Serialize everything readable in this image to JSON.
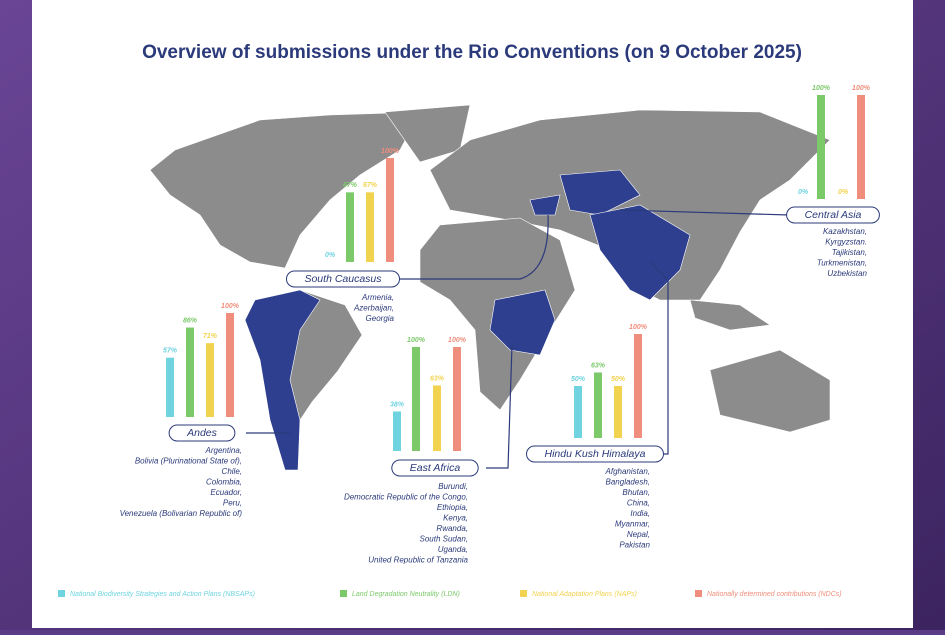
{
  "title": "Overview of submissions under the Rio Conventions (on 9 October 2025)",
  "legend": [
    {
      "name": "National Biodiversity Strategies and Action Plans (NBSAPs)",
      "color": "#6fd3e0"
    },
    {
      "name": "Land Degradation Neutrality (LDN)",
      "color": "#7cc96a"
    },
    {
      "name": "National Adaptation Plans (NAPs)",
      "color": "#f2d34f"
    },
    {
      "name": "Nationally determined contributions (NDCs)",
      "color": "#ef8e7c"
    }
  ],
  "regions": [
    {
      "name": "Andes",
      "values": [
        57,
        86,
        71,
        100
      ],
      "value_labels": [
        "57%",
        "86%",
        "71%",
        "100%"
      ],
      "countries": [
        "Argentina,",
        "Bolivia (Plurinational State of),",
        "Chile,",
        "Colombia,",
        "Ecuador,",
        "Peru,",
        "Venezuela (Bolivarian Republic of)"
      ]
    },
    {
      "name": "South Caucasus",
      "values": [
        0,
        67,
        67,
        100
      ],
      "value_labels": [
        "0%",
        "67%",
        "67%",
        "100%"
      ],
      "countries": [
        "Armenia,",
        "Azerbaijan,",
        "Georgia"
      ]
    },
    {
      "name": "Central Asia",
      "values": [
        0,
        100,
        0,
        100
      ],
      "value_labels": [
        "0%",
        "100%",
        "0%",
        "100%"
      ],
      "countries": [
        "Kazakhstan,",
        "Kyrgyzstan.",
        "Tajikistan,",
        "Turkmenistan,",
        "Uzbekistan"
      ]
    },
    {
      "name": "East Africa",
      "values": [
        38,
        100,
        63,
        100
      ],
      "value_labels": [
        "38%",
        "100%",
        "63%",
        "100%"
      ],
      "countries": [
        "Burundi,",
        "Democratic Republic of the Congo,",
        "Ethiopia,",
        "Kenya,",
        "Rwanda,",
        "South Sudan,",
        "Uganda,",
        "United Republic of Tanzania"
      ]
    },
    {
      "name": "Hindu Kush Himalaya",
      "values": [
        50,
        63,
        50,
        100
      ],
      "value_labels": [
        "50%",
        "63%",
        "50%",
        "100%"
      ],
      "countries": [
        "Afghanistan,",
        "Bangladesh,",
        "Bhutan,",
        "China,",
        "India,",
        "Myanmar,",
        "Nepal,",
        "Pakistan"
      ]
    }
  ]
}
